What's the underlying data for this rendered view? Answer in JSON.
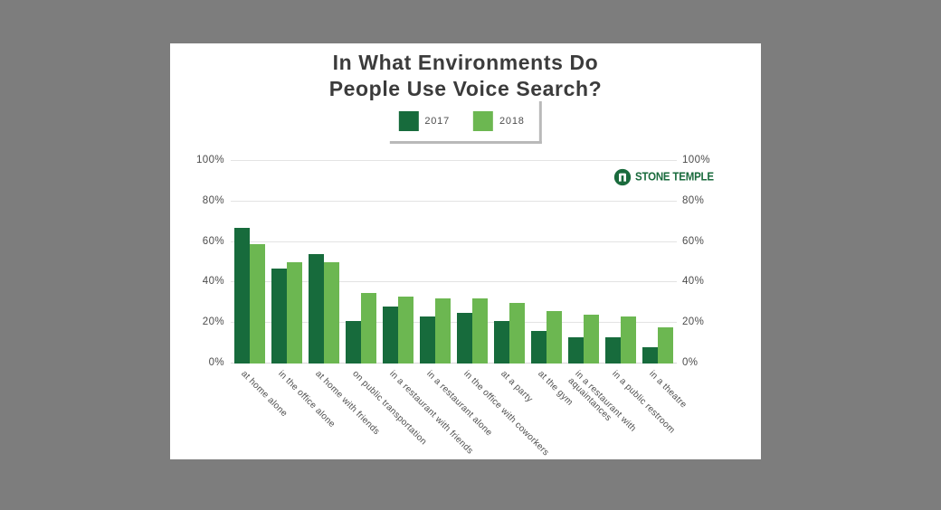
{
  "window": {
    "background_color": "#7d7d7d",
    "panel_color": "#ffffff"
  },
  "title": {
    "line1": "In What Environments Do",
    "line2": "People Use Voice Search?"
  },
  "legend": {
    "items": [
      {
        "label": "2017",
        "color": "#176b3c"
      },
      {
        "label": "2018",
        "color": "#6cb751"
      }
    ]
  },
  "watermark": {
    "brand": "STONE TEMPLE",
    "color": "#1a6b3d"
  },
  "chart_data": {
    "type": "bar",
    "title": "In What Environments Do People Use Voice Search?",
    "categories": [
      "at home alone",
      "in the office alone",
      "at home with friends",
      "on public transportation",
      "in a restaurant with friends",
      "in a restaurant alone",
      "in the office with coworkers",
      "at a party",
      "at the gym",
      "in a restaurant with\naquaintances",
      "in a public restroom",
      "in a theatre"
    ],
    "series": [
      {
        "name": "2017",
        "color": "#176b3c",
        "values": [
          67,
          47,
          54,
          21,
          28,
          23,
          25,
          21,
          16,
          13,
          13,
          8
        ]
      },
      {
        "name": "2018",
        "color": "#6cb751",
        "values": [
          59,
          50,
          50,
          35,
          33,
          32,
          32,
          30,
          26,
          24,
          23,
          18
        ]
      }
    ],
    "value_unit": "%",
    "ylim": [
      0,
      100
    ],
    "yticks_percent": [
      0,
      20,
      40,
      60,
      80,
      100
    ],
    "grid": true,
    "y_axis_labels_both_sides": true,
    "legend_position": "top-center",
    "x_label_rotation_deg": 45
  }
}
